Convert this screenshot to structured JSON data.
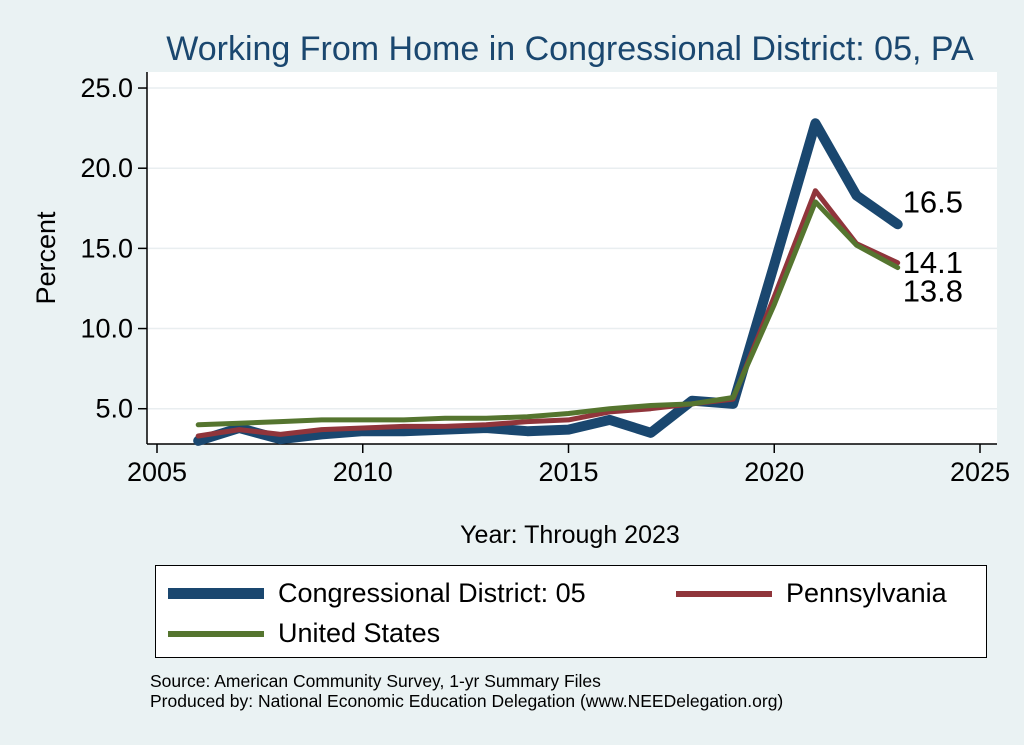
{
  "chart_data": {
    "type": "line",
    "title": "Working From Home in Congressional District: 05, PA",
    "xlabel": "Year: Through 2023",
    "ylabel": "Percent",
    "xlim": [
      2005,
      2025
    ],
    "ylim": [
      2.8,
      26.0
    ],
    "x_ticks": [
      2005,
      2010,
      2015,
      2020,
      2025
    ],
    "x_tick_labels": [
      "2005",
      "2010",
      "2015",
      "2020",
      "2025"
    ],
    "y_ticks": [
      5,
      10,
      15,
      20,
      25
    ],
    "y_tick_labels": [
      "5.0",
      "10.0",
      "15.0",
      "20.0",
      "25.0"
    ],
    "grid": "horizontal",
    "x": [
      2006,
      2007,
      2008,
      2009,
      2010,
      2011,
      2012,
      2013,
      2014,
      2015,
      2016,
      2017,
      2018,
      2019,
      2020,
      2021,
      2022,
      2023
    ],
    "series": [
      {
        "name": "Congressional District: 05",
        "color": "#1a476f",
        "values": [
          3.0,
          3.8,
          3.1,
          3.4,
          3.6,
          3.6,
          3.7,
          3.8,
          3.6,
          3.7,
          4.3,
          3.5,
          5.5,
          5.3,
          14.0,
          22.8,
          18.3,
          16.5
        ],
        "end_label": "16.5"
      },
      {
        "name": "Pennsylvania",
        "color": "#90353b",
        "values": [
          3.3,
          3.7,
          3.4,
          3.7,
          3.8,
          3.9,
          3.9,
          4.0,
          4.2,
          4.3,
          4.8,
          5.0,
          5.3,
          5.6,
          12.0,
          18.6,
          15.3,
          14.1
        ],
        "end_label": "14.1"
      },
      {
        "name": "United States",
        "color": "#55752f",
        "values": [
          4.0,
          4.1,
          4.2,
          4.3,
          4.3,
          4.3,
          4.4,
          4.4,
          4.5,
          4.7,
          5.0,
          5.2,
          5.3,
          5.7,
          11.5,
          17.9,
          15.2,
          13.8
        ],
        "end_label": "13.8"
      }
    ],
    "legend_position": "bottom"
  },
  "legend": {
    "items": [
      {
        "label": "Congressional District: 05",
        "color": "#1a476f"
      },
      {
        "label": "Pennsylvania",
        "color": "#90353b"
      },
      {
        "label": "United States",
        "color": "#55752f"
      }
    ]
  },
  "footer": {
    "source": "Source: American Community Survey, 1-yr Summary Files",
    "produced_by": "Produced by: National Economic Education Delegation (www.NEEDelegation.org)"
  }
}
